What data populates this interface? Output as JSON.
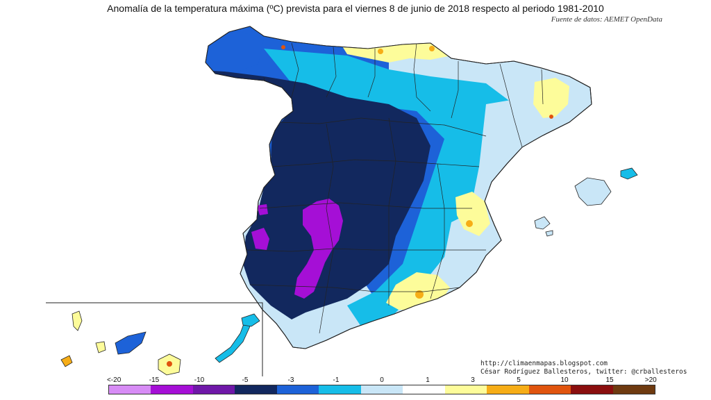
{
  "title": "Anomalía de la temperatura máxima (ºC) prevista para el viernes 8 de junio de 2018 respecto al periodo 1981-2010",
  "source": "Fuente de datos: AEMET OpenData",
  "credits": {
    "blog": "http://climaenmapas.blogspot.com",
    "author": "César Rodríguez Ballesteros, twitter: @crballesteros"
  },
  "legend": {
    "tick_labels": [
      "<-20",
      "-15",
      "-10",
      "-5",
      "-3",
      "-1",
      "0",
      "1",
      "3",
      "5",
      "10",
      "15",
      ">20"
    ],
    "colors": [
      "#d78cf5",
      "#a50fd6",
      "#6f18a8",
      "#12285e",
      "#1d62d8",
      "#16bde8",
      "#c9e6f7",
      "#ffffff",
      "#fdfc9a",
      "#f6ad17",
      "#e0540e",
      "#8a0e0e"
    ],
    "extra_color": "#6e3a10"
  },
  "palette": {
    "navy": "#12285e",
    "blue": "#1d62d8",
    "cyan": "#16bde8",
    "lightblue": "#c9e6f7",
    "white": "#ffffff",
    "yellow": "#fdfc9a",
    "orange": "#f6ad17",
    "red": "#e0540e",
    "purple": "#a50fd6",
    "border": "#222222"
  }
}
